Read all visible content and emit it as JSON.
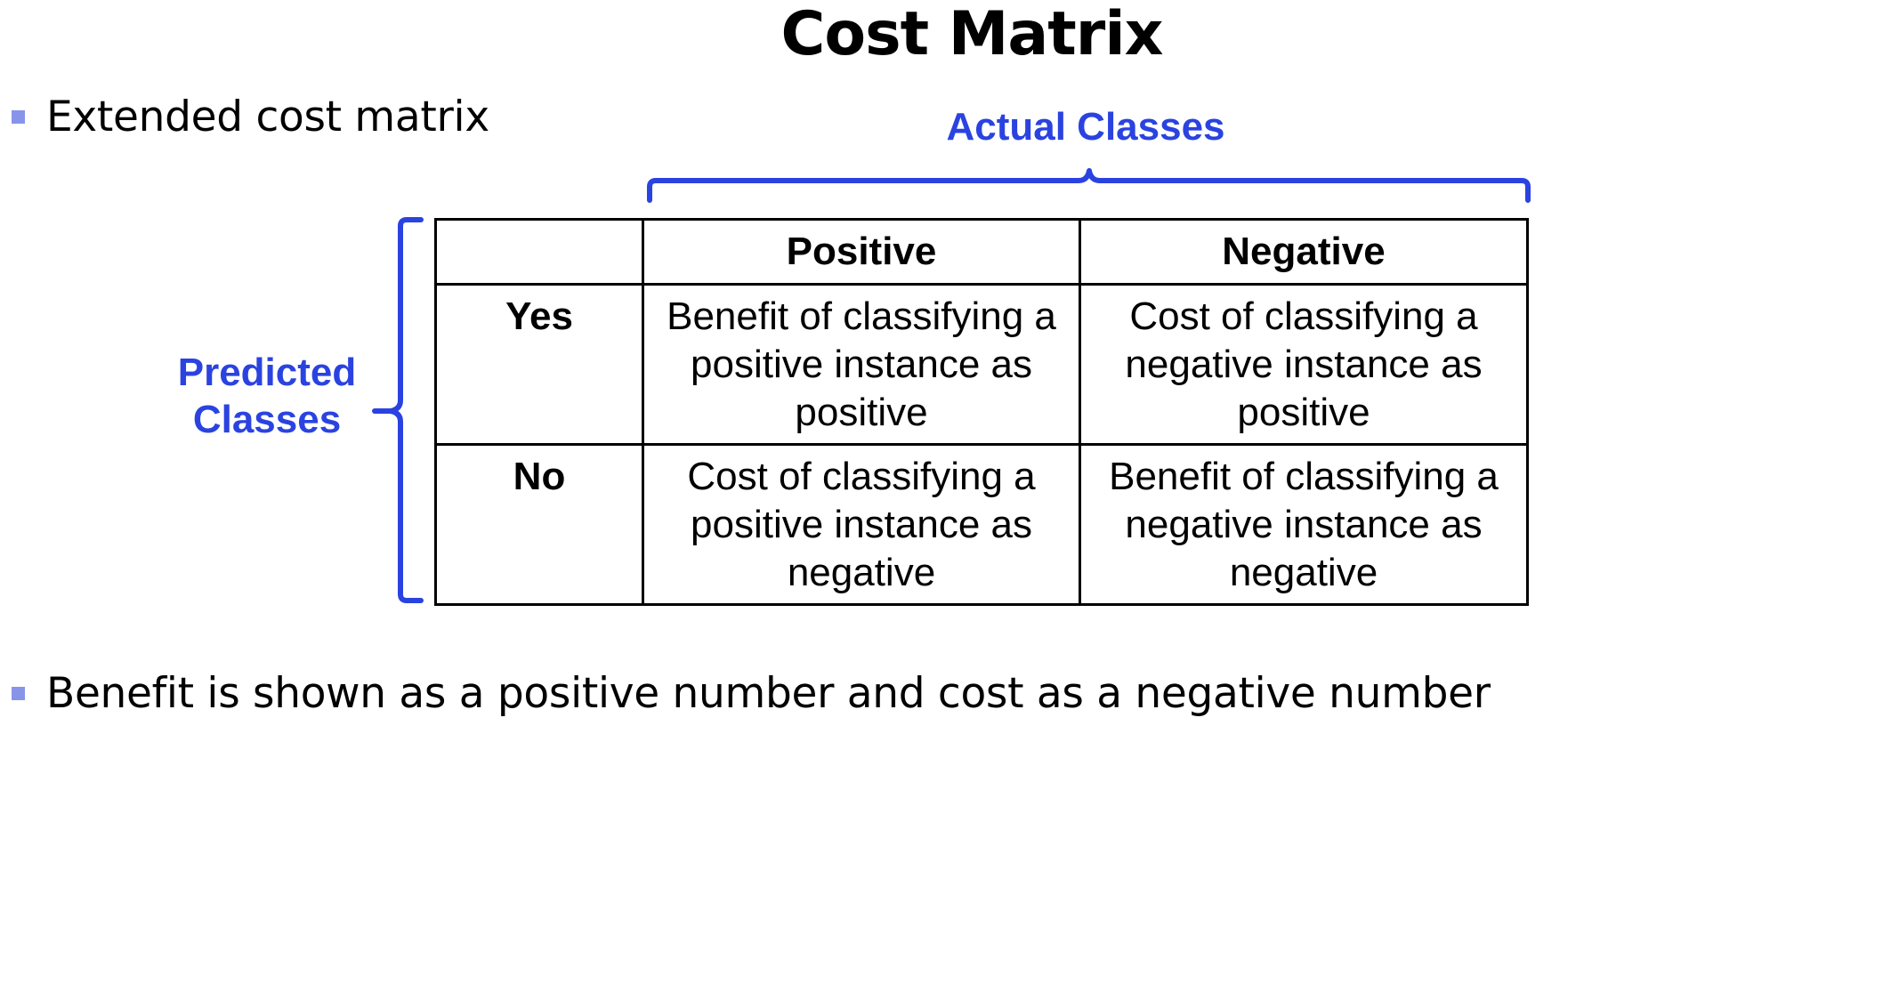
{
  "title": "Cost Matrix",
  "bullets": [
    "Extended cost matrix",
    "Benefit is shown as a positive number and cost as a negative number"
  ],
  "labels": {
    "actual": "Actual Classes",
    "predicted": "Predicted Classes"
  },
  "table": {
    "columns": [
      "",
      "Positive",
      "Negative"
    ],
    "rows": [
      {
        "label": "Yes",
        "cells": [
          "Benefit of classifying a positive instance as positive",
          "Cost of classifying a negative instance as positive"
        ]
      },
      {
        "label": "No",
        "cells": [
          "Cost of classifying a positive instance as negative",
          "Benefit of classifying a negative instance as negative"
        ]
      }
    ]
  },
  "colors": {
    "accent_blue": "#2a43e0",
    "bullet_marker": "#8794ea",
    "text": "#000000"
  }
}
